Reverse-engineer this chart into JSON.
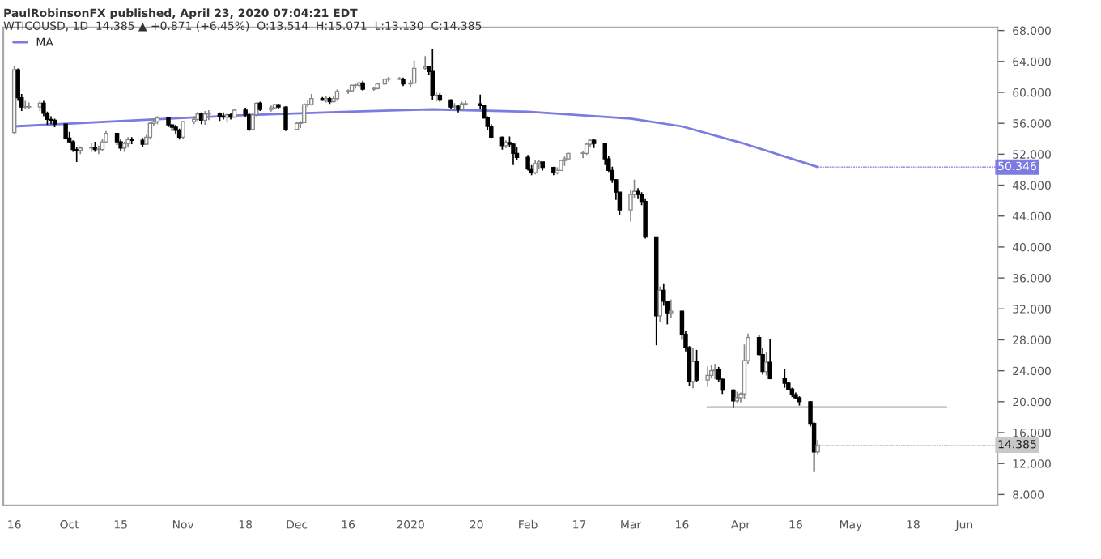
{
  "chart_data": {
    "type": "candlestick",
    "title": "PaulRobinsonFX published, April 23, 2020 07:04:21 EDT",
    "subtitle": "WTICOUSD, 1D  14.385 ▲ +0.871 (+6.45%)  O:13.514  H:15.071  L:13.130  C:14.385",
    "x": [
      "2019-09-16",
      "2019-09-17",
      "2019-09-18",
      "2019-09-19",
      "2019-09-20",
      "2019-09-23",
      "2019-09-24",
      "2019-09-25",
      "2019-09-26",
      "2019-09-27",
      "2019-09-30",
      "2019-10-01",
      "2019-10-02",
      "2019-10-03",
      "2019-10-04",
      "2019-10-07",
      "2019-10-08",
      "2019-10-09",
      "2019-10-10",
      "2019-10-11",
      "2019-10-14",
      "2019-10-15",
      "2019-10-16",
      "2019-10-17",
      "2019-10-18",
      "2019-10-21",
      "2019-10-22",
      "2019-10-23",
      "2019-10-24",
      "2019-10-25",
      "2019-10-28",
      "2019-10-29",
      "2019-10-30",
      "2019-10-31",
      "2019-11-01",
      "2019-11-04",
      "2019-11-05",
      "2019-11-06",
      "2019-11-07",
      "2019-11-08",
      "2019-11-11",
      "2019-11-12",
      "2019-11-13",
      "2019-11-14",
      "2019-11-15",
      "2019-11-18",
      "2019-11-19",
      "2019-11-20",
      "2019-11-21",
      "2019-11-22",
      "2019-11-25",
      "2019-11-26",
      "2019-11-27",
      "2019-11-29",
      "2019-12-02",
      "2019-12-03",
      "2019-12-04",
      "2019-12-05",
      "2019-12-06",
      "2019-12-09",
      "2019-12-10",
      "2019-12-11",
      "2019-12-12",
      "2019-12-13",
      "2019-12-16",
      "2019-12-17",
      "2019-12-18",
      "2019-12-19",
      "2019-12-20",
      "2019-12-23",
      "2019-12-24",
      "2019-12-26",
      "2019-12-27",
      "2019-12-30",
      "2019-12-31",
      "2020-01-02",
      "2020-01-03",
      "2020-01-06",
      "2020-01-07",
      "2020-01-08",
      "2020-01-09",
      "2020-01-10",
      "2020-01-13",
      "2020-01-14",
      "2020-01-15",
      "2020-01-16",
      "2020-01-17",
      "2020-01-21",
      "2020-01-22",
      "2020-01-23",
      "2020-01-24",
      "2020-01-27",
      "2020-01-28",
      "2020-01-29",
      "2020-01-30",
      "2020-01-31",
      "2020-02-03",
      "2020-02-04",
      "2020-02-05",
      "2020-02-06",
      "2020-02-07",
      "2020-02-10",
      "2020-02-11",
      "2020-02-12",
      "2020-02-13",
      "2020-02-14",
      "2020-02-18",
      "2020-02-19",
      "2020-02-20",
      "2020-02-21",
      "2020-02-24",
      "2020-02-25",
      "2020-02-26",
      "2020-02-27",
      "2020-02-28",
      "2020-03-02",
      "2020-03-03",
      "2020-03-04",
      "2020-03-05",
      "2020-03-06",
      "2020-03-09",
      "2020-03-10",
      "2020-03-11",
      "2020-03-12",
      "2020-03-13",
      "2020-03-16",
      "2020-03-17",
      "2020-03-18",
      "2020-03-19",
      "2020-03-20",
      "2020-03-23",
      "2020-03-24",
      "2020-03-25",
      "2020-03-26",
      "2020-03-27",
      "2020-03-30",
      "2020-03-31",
      "2020-04-01",
      "2020-04-02",
      "2020-04-03",
      "2020-04-06",
      "2020-04-07",
      "2020-04-08",
      "2020-04-09",
      "2020-04-13",
      "2020-04-14",
      "2020-04-15",
      "2020-04-16",
      "2020-04-17",
      "2020-04-20",
      "2020-04-21",
      "2020-04-22"
    ],
    "ohlc": [
      [
        54.8,
        63.4,
        54.6,
        62.9
      ],
      [
        62.9,
        63.1,
        58.9,
        59.3
      ],
      [
        59.3,
        59.8,
        57.6,
        58.1
      ],
      [
        58.1,
        58.9,
        57.8,
        58.1
      ],
      [
        58.1,
        58.7,
        57.9,
        58.1
      ],
      [
        58.1,
        58.9,
        57.6,
        58.6
      ],
      [
        58.6,
        58.9,
        56.9,
        57.3
      ],
      [
        57.3,
        57.5,
        55.8,
        56.5
      ],
      [
        56.5,
        56.9,
        55.9,
        56.4
      ],
      [
        56.4,
        56.6,
        55.5,
        55.9
      ],
      [
        55.9,
        56.0,
        53.9,
        54.1
      ],
      [
        54.1,
        54.9,
        53.4,
        53.6
      ],
      [
        53.6,
        53.8,
        52.3,
        52.6
      ],
      [
        52.6,
        52.9,
        51.0,
        52.5
      ],
      [
        52.5,
        53.0,
        52.0,
        52.8
      ],
      [
        52.8,
        53.4,
        52.3,
        52.8
      ],
      [
        52.8,
        53.6,
        52.3,
        52.6
      ],
      [
        52.6,
        53.1,
        52.0,
        52.6
      ],
      [
        52.6,
        54.0,
        52.4,
        53.6
      ],
      [
        53.6,
        55.0,
        53.5,
        54.7
      ],
      [
        54.7,
        54.8,
        53.2,
        53.6
      ],
      [
        53.6,
        53.9,
        52.4,
        52.8
      ],
      [
        52.8,
        53.6,
        52.3,
        53.4
      ],
      [
        53.4,
        54.2,
        52.9,
        53.9
      ],
      [
        53.9,
        54.2,
        53.3,
        53.8
      ],
      [
        53.8,
        54.1,
        52.9,
        53.3
      ],
      [
        53.3,
        54.5,
        53.2,
        54.2
      ],
      [
        54.2,
        56.2,
        53.9,
        56.0
      ],
      [
        56.0,
        56.6,
        55.6,
        56.2
      ],
      [
        56.2,
        56.9,
        55.9,
        56.7
      ],
      [
        56.7,
        56.7,
        55.5,
        55.8
      ],
      [
        55.8,
        55.9,
        55.0,
        55.5
      ],
      [
        55.5,
        55.8,
        54.6,
        55.1
      ],
      [
        55.1,
        55.3,
        53.9,
        54.2
      ],
      [
        54.2,
        56.3,
        54.0,
        56.2
      ],
      [
        56.2,
        56.9,
        55.9,
        56.5
      ],
      [
        56.5,
        57.5,
        56.3,
        57.2
      ],
      [
        57.2,
        57.4,
        55.9,
        56.4
      ],
      [
        56.4,
        57.6,
        55.8,
        57.2
      ],
      [
        57.2,
        57.7,
        56.4,
        57.2
      ],
      [
        57.2,
        57.4,
        56.3,
        56.9
      ],
      [
        56.9,
        57.4,
        56.5,
        56.8
      ],
      [
        56.8,
        57.3,
        56.1,
        57.1
      ],
      [
        57.1,
        57.3,
        56.5,
        56.8
      ],
      [
        56.8,
        57.9,
        56.7,
        57.7
      ],
      [
        57.7,
        58.0,
        56.8,
        57.1
      ],
      [
        57.1,
        57.3,
        55.0,
        55.2
      ],
      [
        55.2,
        57.3,
        55.1,
        57.1
      ],
      [
        57.1,
        58.7,
        56.9,
        58.6
      ],
      [
        58.6,
        58.8,
        57.6,
        57.8
      ],
      [
        57.8,
        58.3,
        57.5,
        58.0
      ],
      [
        58.0,
        58.5,
        57.8,
        58.4
      ],
      [
        58.4,
        58.5,
        57.9,
        58.1
      ],
      [
        58.1,
        58.2,
        55.0,
        55.2
      ],
      [
        55.2,
        56.2,
        55.1,
        56.0
      ],
      [
        56.0,
        56.3,
        55.4,
        56.1
      ],
      [
        56.1,
        58.6,
        56.0,
        58.4
      ],
      [
        58.4,
        59.0,
        58.1,
        58.4
      ],
      [
        58.4,
        59.8,
        58.3,
        59.2
      ],
      [
        59.2,
        59.4,
        58.9,
        59.0
      ],
      [
        59.0,
        59.5,
        58.7,
        59.2
      ],
      [
        59.2,
        59.4,
        58.5,
        58.8
      ],
      [
        58.8,
        59.5,
        58.7,
        59.2
      ],
      [
        59.2,
        60.4,
        58.9,
        60.1
      ],
      [
        60.1,
        60.4,
        59.8,
        60.2
      ],
      [
        60.2,
        61.0,
        60.1,
        60.9
      ],
      [
        60.9,
        61.1,
        60.5,
        60.9
      ],
      [
        60.9,
        61.4,
        60.6,
        61.2
      ],
      [
        61.2,
        61.5,
        60.2,
        60.4
      ],
      [
        60.4,
        60.7,
        60.2,
        60.5
      ],
      [
        60.5,
        61.2,
        60.4,
        61.1
      ],
      [
        61.1,
        61.8,
        61.0,
        61.7
      ],
      [
        61.7,
        62.0,
        61.4,
        61.7
      ],
      [
        61.7,
        62.0,
        61.6,
        61.7
      ],
      [
        61.7,
        61.9,
        60.8,
        61.1
      ],
      [
        61.1,
        61.6,
        60.6,
        61.2
      ],
      [
        61.2,
        64.1,
        61.1,
        63.1
      ],
      [
        63.1,
        64.7,
        62.9,
        63.3
      ],
      [
        63.3,
        63.4,
        62.3,
        62.7
      ],
      [
        62.7,
        65.6,
        59.0,
        59.6
      ],
      [
        59.6,
        60.1,
        58.8,
        59.6
      ],
      [
        59.6,
        59.9,
        58.8,
        59.0
      ],
      [
        59.0,
        59.1,
        57.9,
        58.1
      ],
      [
        58.1,
        58.6,
        57.9,
        58.2
      ],
      [
        58.2,
        58.4,
        57.4,
        57.8
      ],
      [
        57.8,
        58.8,
        57.7,
        58.5
      ],
      [
        58.5,
        58.9,
        58.3,
        58.5
      ],
      [
        58.5,
        59.7,
        57.9,
        58.3
      ],
      [
        58.3,
        58.4,
        56.6,
        56.7
      ],
      [
        56.7,
        56.9,
        55.1,
        55.6
      ],
      [
        55.6,
        55.9,
        54.1,
        54.2
      ],
      [
        54.2,
        54.3,
        52.6,
        53.1
      ],
      [
        53.1,
        53.8,
        52.8,
        53.5
      ],
      [
        53.5,
        54.3,
        52.9,
        53.3
      ],
      [
        53.3,
        53.5,
        50.6,
        52.1
      ],
      [
        52.1,
        52.9,
        51.2,
        51.6
      ],
      [
        51.6,
        51.9,
        49.9,
        50.1
      ],
      [
        50.1,
        50.6,
        49.3,
        49.6
      ],
      [
        49.6,
        51.3,
        49.4,
        50.8
      ],
      [
        50.8,
        51.3,
        50.1,
        51.0
      ],
      [
        51.0,
        51.0,
        49.9,
        50.3
      ],
      [
        50.3,
        50.4,
        49.3,
        49.6
      ],
      [
        49.6,
        50.3,
        49.4,
        49.9
      ],
      [
        49.9,
        51.3,
        49.9,
        51.2
      ],
      [
        51.2,
        51.7,
        50.5,
        51.4
      ],
      [
        51.4,
        52.2,
        51.2,
        52.1
      ],
      [
        52.1,
        52.4,
        51.5,
        52.1
      ],
      [
        52.1,
        53.5,
        51.9,
        53.3
      ],
      [
        53.3,
        54.0,
        52.9,
        53.8
      ],
      [
        53.8,
        54.0,
        52.8,
        53.4
      ],
      [
        53.4,
        53.4,
        50.6,
        51.4
      ],
      [
        51.4,
        51.8,
        49.7,
        49.9
      ],
      [
        49.9,
        50.4,
        48.3,
        48.7
      ],
      [
        48.7,
        48.8,
        46.1,
        47.1
      ],
      [
        47.1,
        47.1,
        44.1,
        44.8
      ],
      [
        44.8,
        47.4,
        43.3,
        46.8
      ],
      [
        46.8,
        48.7,
        46.3,
        47.2
      ],
      [
        47.2,
        47.6,
        46.2,
        46.8
      ],
      [
        46.8,
        47.1,
        45.4,
        45.9
      ],
      [
        45.9,
        46.2,
        41.1,
        41.3
      ],
      [
        41.3,
        41.3,
        27.3,
        31.1
      ],
      [
        31.1,
        34.9,
        30.3,
        34.4
      ],
      [
        34.4,
        35.3,
        32.4,
        33.0
      ],
      [
        33.0,
        33.0,
        30.0,
        31.5
      ],
      [
        31.5,
        33.2,
        30.8,
        31.7
      ],
      [
        31.7,
        31.8,
        28.0,
        28.7
      ],
      [
        28.7,
        29.2,
        26.5,
        27.0
      ],
      [
        27.0,
        27.2,
        22.0,
        22.6
      ],
      [
        22.6,
        27.0,
        21.7,
        25.2
      ],
      [
        25.2,
        26.7,
        22.6,
        22.8
      ],
      [
        22.8,
        24.6,
        21.9,
        23.4
      ],
      [
        23.4,
        24.8,
        23.0,
        24.0
      ],
      [
        24.0,
        24.9,
        22.9,
        24.1
      ],
      [
        24.1,
        24.5,
        22.5,
        22.9
      ],
      [
        22.9,
        23.0,
        21.0,
        21.5
      ],
      [
        21.5,
        21.6,
        19.3,
        20.1
      ],
      [
        20.1,
        21.3,
        19.9,
        20.5
      ],
      [
        20.5,
        21.2,
        19.9,
        21.0
      ],
      [
        21.0,
        27.4,
        20.4,
        25.3
      ],
      [
        25.3,
        28.8,
        24.9,
        28.3
      ],
      [
        28.3,
        28.6,
        25.9,
        26.1
      ],
      [
        26.1,
        27.0,
        23.5,
        23.9
      ],
      [
        23.9,
        26.4,
        23.4,
        25.1
      ],
      [
        25.1,
        28.1,
        22.9,
        23.0
      ],
      [
        23.0,
        24.2,
        21.8,
        22.4
      ],
      [
        22.4,
        22.6,
        21.5,
        21.6
      ],
      [
        21.6,
        21.8,
        20.6,
        20.9
      ],
      [
        20.9,
        21.2,
        20.3,
        20.5
      ],
      [
        20.5,
        20.7,
        19.5,
        20.0
      ],
      [
        20.0,
        20.1,
        16.8,
        17.2
      ],
      [
        17.2,
        17.4,
        11.0,
        13.514
      ],
      [
        13.514,
        15.071,
        13.13,
        14.385
      ]
    ],
    "series": [
      {
        "name": "MA",
        "type": "line",
        "color": "#7b7be0",
        "x": [
          "2019-09-16",
          "2019-10-15",
          "2019-11-15",
          "2019-12-16",
          "2020-01-08",
          "2020-02-03",
          "2020-03-02",
          "2020-03-16",
          "2020-04-01",
          "2020-04-22"
        ],
        "values": [
          55.6,
          56.3,
          57.0,
          57.5,
          57.8,
          57.5,
          56.6,
          55.6,
          53.5,
          50.346
        ]
      },
      {
        "type": "line",
        "color": "#c8c8c8",
        "x": [
          "2020-03-23",
          "2020-05-27"
        ],
        "values": [
          19.3,
          19.3
        ]
      }
    ],
    "annotations": [
      {
        "text": "50.346",
        "x": "2020-04-22",
        "y": 50.346
      },
      {
        "text": "14.385",
        "x": "2020-04-22",
        "y": 14.385
      }
    ],
    "xlim": [
      "2019-09-13",
      "2020-06-10"
    ],
    "xticks": [
      {
        "value": "2019-09-16",
        "label": "16"
      },
      {
        "value": "2019-10-01",
        "label": "Oct"
      },
      {
        "value": "2019-10-15",
        "label": "15"
      },
      {
        "value": "2019-11-01",
        "label": "Nov"
      },
      {
        "value": "2019-11-18",
        "label": "18"
      },
      {
        "value": "2019-12-02",
        "label": "Dec"
      },
      {
        "value": "2019-12-16",
        "label": "16"
      },
      {
        "value": "2020-01-02",
        "label": "2020"
      },
      {
        "value": "2020-01-20",
        "label": "20"
      },
      {
        "value": "2020-02-03",
        "label": "Feb"
      },
      {
        "value": "2020-02-17",
        "label": "17"
      },
      {
        "value": "2020-03-02",
        "label": "Mar"
      },
      {
        "value": "2020-03-16",
        "label": "16"
      },
      {
        "value": "2020-04-01",
        "label": "Apr"
      },
      {
        "value": "2020-04-16",
        "label": "16"
      },
      {
        "value": "2020-05-01",
        "label": "May"
      },
      {
        "value": "2020-05-18",
        "label": "18"
      },
      {
        "value": "2020-06-01",
        "label": "Jun"
      }
    ],
    "ylim": [
      6.6,
      68.4
    ],
    "yticks": [
      {
        "value": 8,
        "label": "8.000"
      },
      {
        "value": 12,
        "label": "12.000"
      },
      {
        "value": 16,
        "label": "16.000"
      },
      {
        "value": 20,
        "label": "20.000"
      },
      {
        "value": 24,
        "label": "24.000"
      },
      {
        "value": 28,
        "label": "28.000"
      },
      {
        "value": 32,
        "label": "32.000"
      },
      {
        "value": 36,
        "label": "36.000"
      },
      {
        "value": 40,
        "label": "40.000"
      },
      {
        "value": 44,
        "label": "44.000"
      },
      {
        "value": 48,
        "label": "48.000"
      },
      {
        "value": 52,
        "label": "52.000"
      },
      {
        "value": 56,
        "label": "56.000"
      },
      {
        "value": 60,
        "label": "60.000"
      },
      {
        "value": 64,
        "label": "64.000"
      },
      {
        "value": 68,
        "label": "68.000"
      }
    ],
    "legend": "top left",
    "grid": false
  }
}
